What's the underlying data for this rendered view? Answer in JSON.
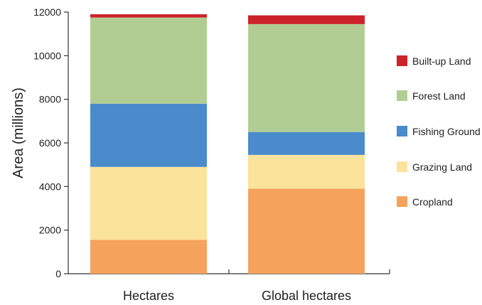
{
  "chart_data": {
    "type": "bar",
    "stacked": true,
    "categories": [
      "Hectares",
      "Global hectares"
    ],
    "series": [
      {
        "name": "Cropland",
        "color": "#F5A25D",
        "values": [
          1550,
          3900
        ]
      },
      {
        "name": "Grazing Land",
        "color": "#FBE39B",
        "values": [
          3350,
          1550
        ]
      },
      {
        "name": "Fishing Ground",
        "color": "#4A8BCB",
        "values": [
          2900,
          1050
        ]
      },
      {
        "name": "Forest Land",
        "color": "#B2CD93",
        "values": [
          3950,
          4950
        ]
      },
      {
        "name": "Built-up Land",
        "color": "#CC2229",
        "values": [
          150,
          400
        ]
      }
    ],
    "ylabel": "Area (millions)",
    "xlabel": "",
    "ylim": [
      0,
      12000
    ],
    "yticks": [
      "0",
      "2000",
      "4000",
      "6000",
      "8000",
      "10000",
      "12000"
    ],
    "legend_position": "right",
    "legend_order": [
      "Built-up Land",
      "Forest Land",
      "Fishing Ground",
      "Grazing Land",
      "Cropland"
    ],
    "grid": false
  }
}
